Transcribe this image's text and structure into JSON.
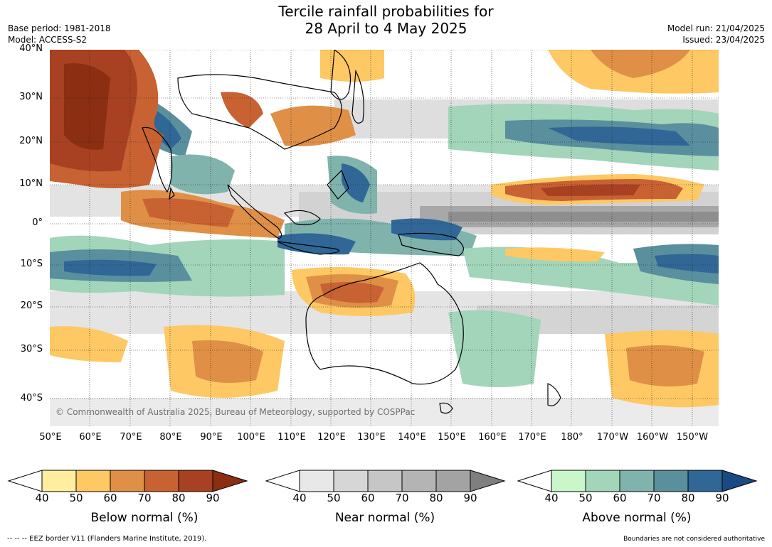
{
  "title_line1": "Tercile rainfall probabilities for",
  "title_line2": "28 April to 4 May 2025",
  "meta_left": [
    "Base period: 1981-2018",
    "Model: ACCESS-S2"
  ],
  "meta_right": [
    "Model run: 21/04/2025",
    "Issued: 23/04/2025"
  ],
  "map": {
    "lat_labels": [
      "40°N",
      "30°N",
      "20°N",
      "10°N",
      "0°",
      "10°S",
      "20°S",
      "30°S",
      "40°S"
    ],
    "lon_labels": [
      "50°E",
      "60°E",
      "70°E",
      "80°E",
      "90°E",
      "100°E",
      "110°E",
      "120°E",
      "130°E",
      "140°E",
      "150°E",
      "160°E",
      "170°E",
      "180°",
      "170°W",
      "160°W",
      "150°W"
    ],
    "copyright": "© Commonwealth of Australia 2025, Bureau of Meteorology, supported by COSPPac"
  },
  "colorbars": [
    {
      "title": "Below normal (%)",
      "ticks": [
        "40",
        "50",
        "60",
        "70",
        "80",
        "90"
      ],
      "colors": [
        "#ffeda0",
        "#fec864",
        "#df9046",
        "#c86232",
        "#a74122",
        "#8b2e12"
      ]
    },
    {
      "title": "Near normal (%)",
      "ticks": [
        "40",
        "50",
        "60",
        "70",
        "80",
        "90"
      ],
      "colors": [
        "#e8e8e8",
        "#d6d6d6",
        "#c6c6c6",
        "#b4b4b4",
        "#a3a3a3",
        "#7f7f7f"
      ]
    },
    {
      "title": "Above normal (%)",
      "ticks": [
        "40",
        "50",
        "60",
        "70",
        "80",
        "90"
      ],
      "colors": [
        "#c9f7c9",
        "#a2d5b9",
        "#7fb3ac",
        "#5a8f9e",
        "#306797",
        "#1a4a82"
      ]
    }
  ],
  "footer_left": "--  --  -- EEZ border V11 (Flanders Marine Institute, 2019).",
  "footer_right": "Boundaries are not considered authoritative"
}
